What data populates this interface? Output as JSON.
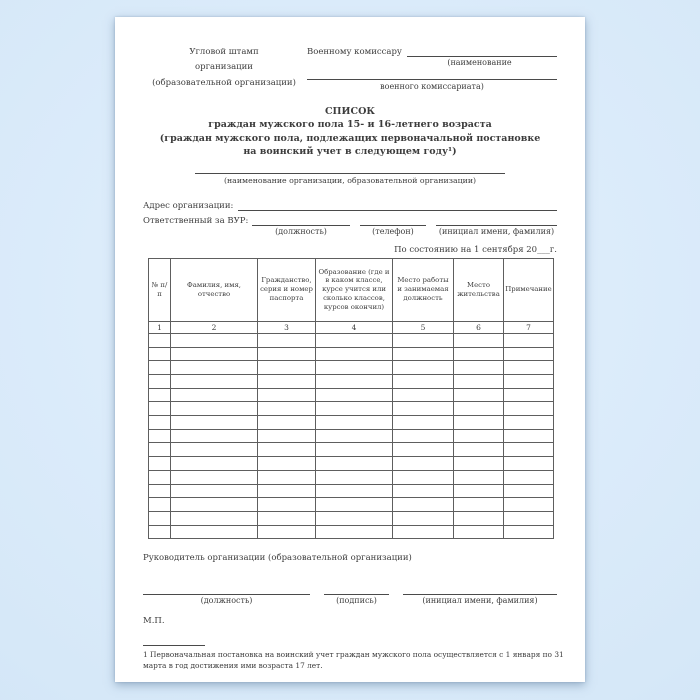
{
  "page": {
    "bg_color": "#d6e8f8",
    "paper_color": "#ffffff",
    "text_color": "#3c3c3c",
    "line_color": "#4a4a4a"
  },
  "header": {
    "stamp_lines": [
      "Угловой штамп",
      "организации",
      "(образовательной организации)"
    ],
    "commissar_label": "Военному комиссару",
    "commissar_caption1": "(наименование",
    "commissar_caption2": "военного комиссариата)"
  },
  "title": {
    "line1": "СПИСОК",
    "line2": "граждан мужского пола 15- и 16-летнего возраста",
    "line3": "(граждан мужского пола, подлежащих первоначальной постановке",
    "line4": "на воинский учет в следующем году¹)",
    "org_caption": "(наименование организации, образовательной организации)"
  },
  "info": {
    "address_label": "Адрес организации:",
    "responsible_label": "Ответственный за ВУР:",
    "captions": [
      "(должность)",
      "(телефон)",
      "(инициал имени, фамилия)"
    ],
    "date_line": "По состоянию на 1 сентября 20___г."
  },
  "table": {
    "headers": [
      "№ п/п",
      "Фамилия, имя, отчество",
      "Гражданство, серия и номер паспорта",
      "Образование (где и в каком классе, курсе учится или сколько классов, курсов окончил)",
      "Место работы и занимаемая должность",
      "Место жительства",
      "Примечание"
    ],
    "column_numbers": [
      "1",
      "2",
      "3",
      "4",
      "5",
      "6",
      "7"
    ],
    "empty_rows": 15
  },
  "signature": {
    "head_label": "Руководитель организации (образовательной организации)",
    "captions": [
      "(должность)",
      "(подпись)",
      "(инициал имени, фамилия)"
    ],
    "stamp_abbr": "М.П."
  },
  "footnote": {
    "text": "1 Первоначальная постановка на воинский учет граждан мужского пола осуществляется с 1 января по 31 марта в год достижения ими возраста 17 лет."
  }
}
